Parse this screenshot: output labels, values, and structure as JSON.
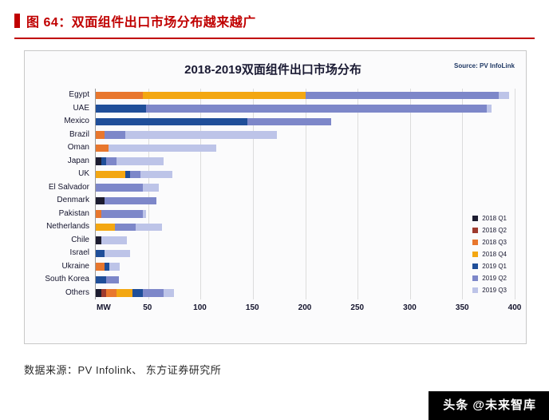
{
  "figure": {
    "label": "图 64：双面组件出口市场分布越来越广"
  },
  "footer": {
    "source_text": "数据来源：PV Infolink、 东方证券研究所"
  },
  "watermark": {
    "text": "头条 @未来智库"
  },
  "colors": {
    "accent_red": "#c00000",
    "axis_text": "#15152e",
    "gridline": "#dcdcdc"
  },
  "chart_data": {
    "type": "bar",
    "orientation": "horizontal",
    "stacked": true,
    "title": "2018-2019双面组件出口市场分布",
    "source_note": "Source: PV InfoLink",
    "x_unit_label": "MW",
    "xlim": [
      0,
      400
    ],
    "xticks": [
      50,
      100,
      150,
      200,
      250,
      300,
      350,
      400
    ],
    "grid": true,
    "legend_position": "right-inside",
    "categories": [
      "Egypt",
      "UAE",
      "Mexico",
      "Brazil",
      "Oman",
      "Japan",
      "UK",
      "El Salvador",
      "Denmark",
      "Pakistan",
      "Netherlands",
      "Chile",
      "Israel",
      "Ukraine",
      "South Korea",
      "Others"
    ],
    "series": [
      {
        "name": "2018 Q1",
        "color": "#1c1c30",
        "values": [
          0,
          0,
          0,
          0,
          0,
          5,
          0,
          0,
          8,
          0,
          0,
          5,
          0,
          0,
          0,
          5
        ]
      },
      {
        "name": "2018 Q2",
        "color": "#9e3a2e",
        "values": [
          0,
          0,
          0,
          0,
          0,
          0,
          0,
          0,
          0,
          0,
          0,
          0,
          0,
          0,
          0,
          5
        ]
      },
      {
        "name": "2018 Q3",
        "color": "#e8772e",
        "values": [
          45,
          0,
          0,
          8,
          12,
          0,
          0,
          0,
          0,
          5,
          0,
          0,
          0,
          8,
          0,
          10
        ]
      },
      {
        "name": "2018 Q4",
        "color": "#f3a712",
        "values": [
          155,
          0,
          0,
          0,
          0,
          0,
          28,
          0,
          0,
          0,
          18,
          0,
          0,
          0,
          0,
          15
        ]
      },
      {
        "name": "2019 Q1",
        "color": "#1f4e99",
        "values": [
          0,
          48,
          145,
          0,
          0,
          5,
          5,
          0,
          0,
          0,
          0,
          0,
          8,
          5,
          10,
          10
        ]
      },
      {
        "name": "2019 Q2",
        "color": "#7d87c9",
        "values": [
          185,
          325,
          80,
          20,
          0,
          10,
          10,
          45,
          50,
          40,
          20,
          0,
          0,
          0,
          12,
          20
        ]
      },
      {
        "name": "2019 Q3",
        "color": "#bdc4e8",
        "values": [
          10,
          5,
          0,
          145,
          103,
          45,
          30,
          15,
          0,
          3,
          25,
          25,
          25,
          10,
          0,
          10
        ]
      }
    ]
  }
}
